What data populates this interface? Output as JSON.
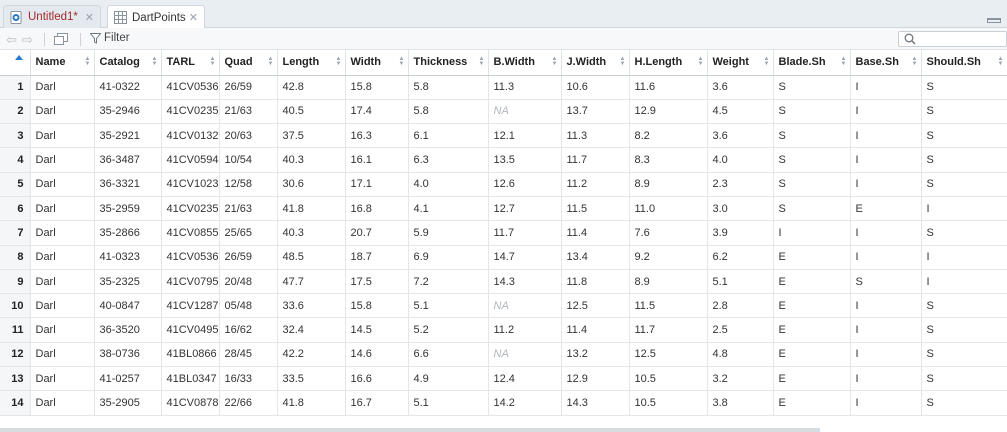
{
  "tabs": [
    {
      "label": "Untitled1*",
      "icon": "r-script-icon",
      "color": "#a42a2a"
    },
    {
      "label": "DartPoints",
      "icon": "table-icon",
      "active": true
    }
  ],
  "toolbar": {
    "filter_label": "Filter"
  },
  "table": {
    "columns": [
      "Name",
      "Catalog",
      "TARL",
      "Quad",
      "Length",
      "Width",
      "Thickness",
      "B.Width",
      "J.Width",
      "H.Length",
      "Weight",
      "Blade.Sh",
      "Base.Sh",
      "Should.Sh"
    ],
    "rows": [
      {
        "n": "1",
        "cells": [
          "Darl",
          "41-0322",
          "41CV0536",
          "26/59",
          "42.8",
          "15.8",
          "5.8",
          "11.3",
          "10.6",
          "11.6",
          "3.6",
          "S",
          "I",
          "S"
        ]
      },
      {
        "n": "2",
        "cells": [
          "Darl",
          "35-2946",
          "41CV0235",
          "21/63",
          "40.5",
          "17.4",
          "5.8",
          "NA",
          "13.7",
          "12.9",
          "4.5",
          "S",
          "I",
          "S"
        ]
      },
      {
        "n": "3",
        "cells": [
          "Darl",
          "35-2921",
          "41CV0132",
          "20/63",
          "37.5",
          "16.3",
          "6.1",
          "12.1",
          "11.3",
          "8.2",
          "3.6",
          "S",
          "I",
          "S"
        ]
      },
      {
        "n": "4",
        "cells": [
          "Darl",
          "36-3487",
          "41CV0594",
          "10/54",
          "40.3",
          "16.1",
          "6.3",
          "13.5",
          "11.7",
          "8.3",
          "4.0",
          "S",
          "I",
          "S"
        ]
      },
      {
        "n": "5",
        "cells": [
          "Darl",
          "36-3321",
          "41CV1023",
          "12/58",
          "30.6",
          "17.1",
          "4.0",
          "12.6",
          "11.2",
          "8.9",
          "2.3",
          "S",
          "I",
          "S"
        ]
      },
      {
        "n": "6",
        "cells": [
          "Darl",
          "35-2959",
          "41CV0235",
          "21/63",
          "41.8",
          "16.8",
          "4.1",
          "12.7",
          "11.5",
          "11.0",
          "3.0",
          "S",
          "E",
          "I"
        ]
      },
      {
        "n": "7",
        "cells": [
          "Darl",
          "35-2866",
          "41CV0855",
          "25/65",
          "40.3",
          "20.7",
          "5.9",
          "11.7",
          "11.4",
          "7.6",
          "3.9",
          "I",
          "I",
          "S"
        ]
      },
      {
        "n": "8",
        "cells": [
          "Darl",
          "41-0323",
          "41CV0536",
          "26/59",
          "48.5",
          "18.7",
          "6.9",
          "14.7",
          "13.4",
          "9.2",
          "6.2",
          "E",
          "I",
          "I"
        ]
      },
      {
        "n": "9",
        "cells": [
          "Darl",
          "35-2325",
          "41CV0795",
          "20/48",
          "47.7",
          "17.5",
          "7.2",
          "14.3",
          "11.8",
          "8.9",
          "5.1",
          "E",
          "S",
          "I"
        ]
      },
      {
        "n": "10",
        "cells": [
          "Darl",
          "40-0847",
          "41CV1287",
          "05/48",
          "33.6",
          "15.8",
          "5.1",
          "NA",
          "12.5",
          "11.5",
          "2.8",
          "E",
          "I",
          "S"
        ]
      },
      {
        "n": "11",
        "cells": [
          "Darl",
          "36-3520",
          "41CV0495",
          "16/62",
          "32.4",
          "14.5",
          "5.2",
          "11.2",
          "11.4",
          "11.7",
          "2.5",
          "E",
          "I",
          "S"
        ]
      },
      {
        "n": "12",
        "cells": [
          "Darl",
          "38-0736",
          "41BL0866",
          "28/45",
          "42.2",
          "14.6",
          "6.6",
          "NA",
          "13.2",
          "12.5",
          "4.8",
          "E",
          "I",
          "S"
        ]
      },
      {
        "n": "13",
        "cells": [
          "Darl",
          "41-0257",
          "41BL0347",
          "16/33",
          "33.5",
          "16.6",
          "4.9",
          "12.4",
          "12.9",
          "10.5",
          "3.2",
          "E",
          "I",
          "S"
        ]
      },
      {
        "n": "14",
        "cells": [
          "Darl",
          "35-2905",
          "41CV0878",
          "22/66",
          "41.8",
          "16.7",
          "5.1",
          "14.2",
          "14.3",
          "10.5",
          "3.8",
          "E",
          "I",
          "S"
        ]
      }
    ]
  }
}
